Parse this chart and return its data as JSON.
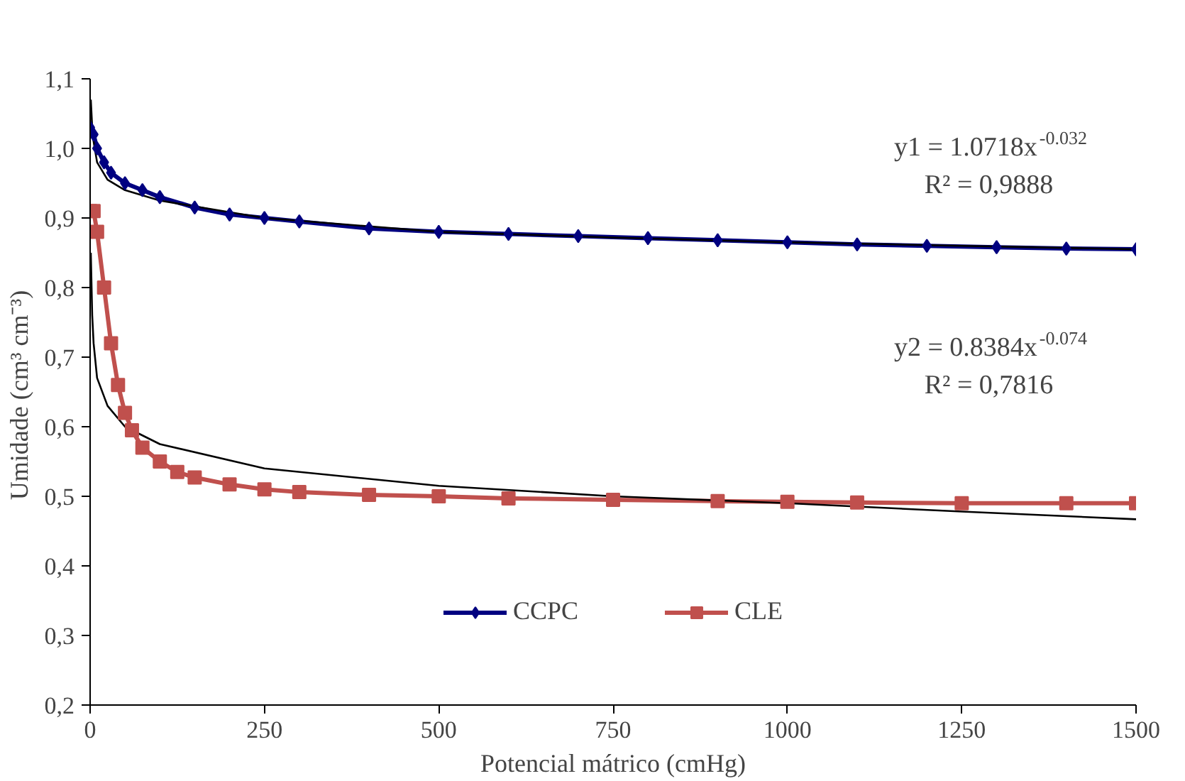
{
  "chart_data": {
    "type": "line",
    "xlabel": "Potencial mátrico (cmHg)",
    "ylabel": "Umidade  (cm³ cm⁻³)",
    "xlim": [
      0,
      1500
    ],
    "ylim": [
      0.2,
      1.1
    ],
    "xticks": [
      0,
      250,
      500,
      750,
      1000,
      1250,
      1500
    ],
    "yticks": [
      {
        "value": 0.2,
        "label": "0,2"
      },
      {
        "value": 0.3,
        "label": "0,3"
      },
      {
        "value": 0.4,
        "label": "0,4"
      },
      {
        "value": 0.5,
        "label": "0,5"
      },
      {
        "value": 0.6,
        "label": "0,6"
      },
      {
        "value": 0.7,
        "label": "0,7"
      },
      {
        "value": 0.8,
        "label": "0,8"
      },
      {
        "value": 0.9,
        "label": "0,9"
      },
      {
        "value": 1.0,
        "label": "1,0"
      },
      {
        "value": 1.1,
        "label": "1,1"
      }
    ],
    "grid": false,
    "legend": "bottom",
    "series": [
      {
        "name": "CCPC",
        "color": "#000080",
        "marker": "diamond",
        "x": [
          0,
          5,
          10,
          20,
          30,
          50,
          75,
          100,
          150,
          200,
          250,
          300,
          400,
          500,
          600,
          700,
          800,
          900,
          1000,
          1100,
          1200,
          1300,
          1400,
          1500
        ],
        "values": [
          1.03,
          1.02,
          1.0,
          0.98,
          0.965,
          0.95,
          0.94,
          0.93,
          0.915,
          0.905,
          0.9,
          0.895,
          0.885,
          0.88,
          0.877,
          0.874,
          0.871,
          0.868,
          0.865,
          0.862,
          0.86,
          0.858,
          0.856,
          0.855
        ]
      },
      {
        "name": "CLE",
        "color": "#c0504d",
        "marker": "square",
        "x": [
          0,
          5,
          10,
          20,
          30,
          40,
          50,
          60,
          75,
          100,
          125,
          150,
          200,
          250,
          300,
          400,
          500,
          600,
          750,
          900,
          1000,
          1100,
          1250,
          1400,
          1500
        ],
        "values": [
          0.91,
          0.91,
          0.88,
          0.8,
          0.72,
          0.66,
          0.62,
          0.595,
          0.57,
          0.55,
          0.535,
          0.527,
          0.517,
          0.51,
          0.506,
          0.502,
          0.5,
          0.497,
          0.495,
          0.493,
          0.492,
          0.491,
          0.49,
          0.49,
          0.49
        ]
      },
      {
        "type": "line",
        "color": "#000000",
        "marker": "none",
        "x": [
          1,
          3,
          5,
          10,
          25,
          50,
          100,
          250,
          500,
          750,
          1000,
          1250,
          1500
        ],
        "values": [
          1.07,
          1.03,
          1.01,
          0.98,
          0.955,
          0.94,
          0.925,
          0.9,
          0.88,
          0.872,
          0.865,
          0.86,
          0.855
        ]
      },
      {
        "type": "line",
        "color": "#000000",
        "marker": "none",
        "x": [
          1,
          3,
          5,
          10,
          25,
          50,
          100,
          250,
          500,
          750,
          1000,
          1250,
          1500
        ],
        "values": [
          0.85,
          0.76,
          0.72,
          0.67,
          0.63,
          0.6,
          0.575,
          0.54,
          0.515,
          0.5,
          0.49,
          0.478,
          0.467
        ]
      }
    ],
    "annotations": [
      "y1 = 1.0718x$^{-0.032}$",
      "R² = 0,9888",
      "y2 = 0.8384x$^{-0.074}$",
      "R² = 0,7816"
    ]
  }
}
